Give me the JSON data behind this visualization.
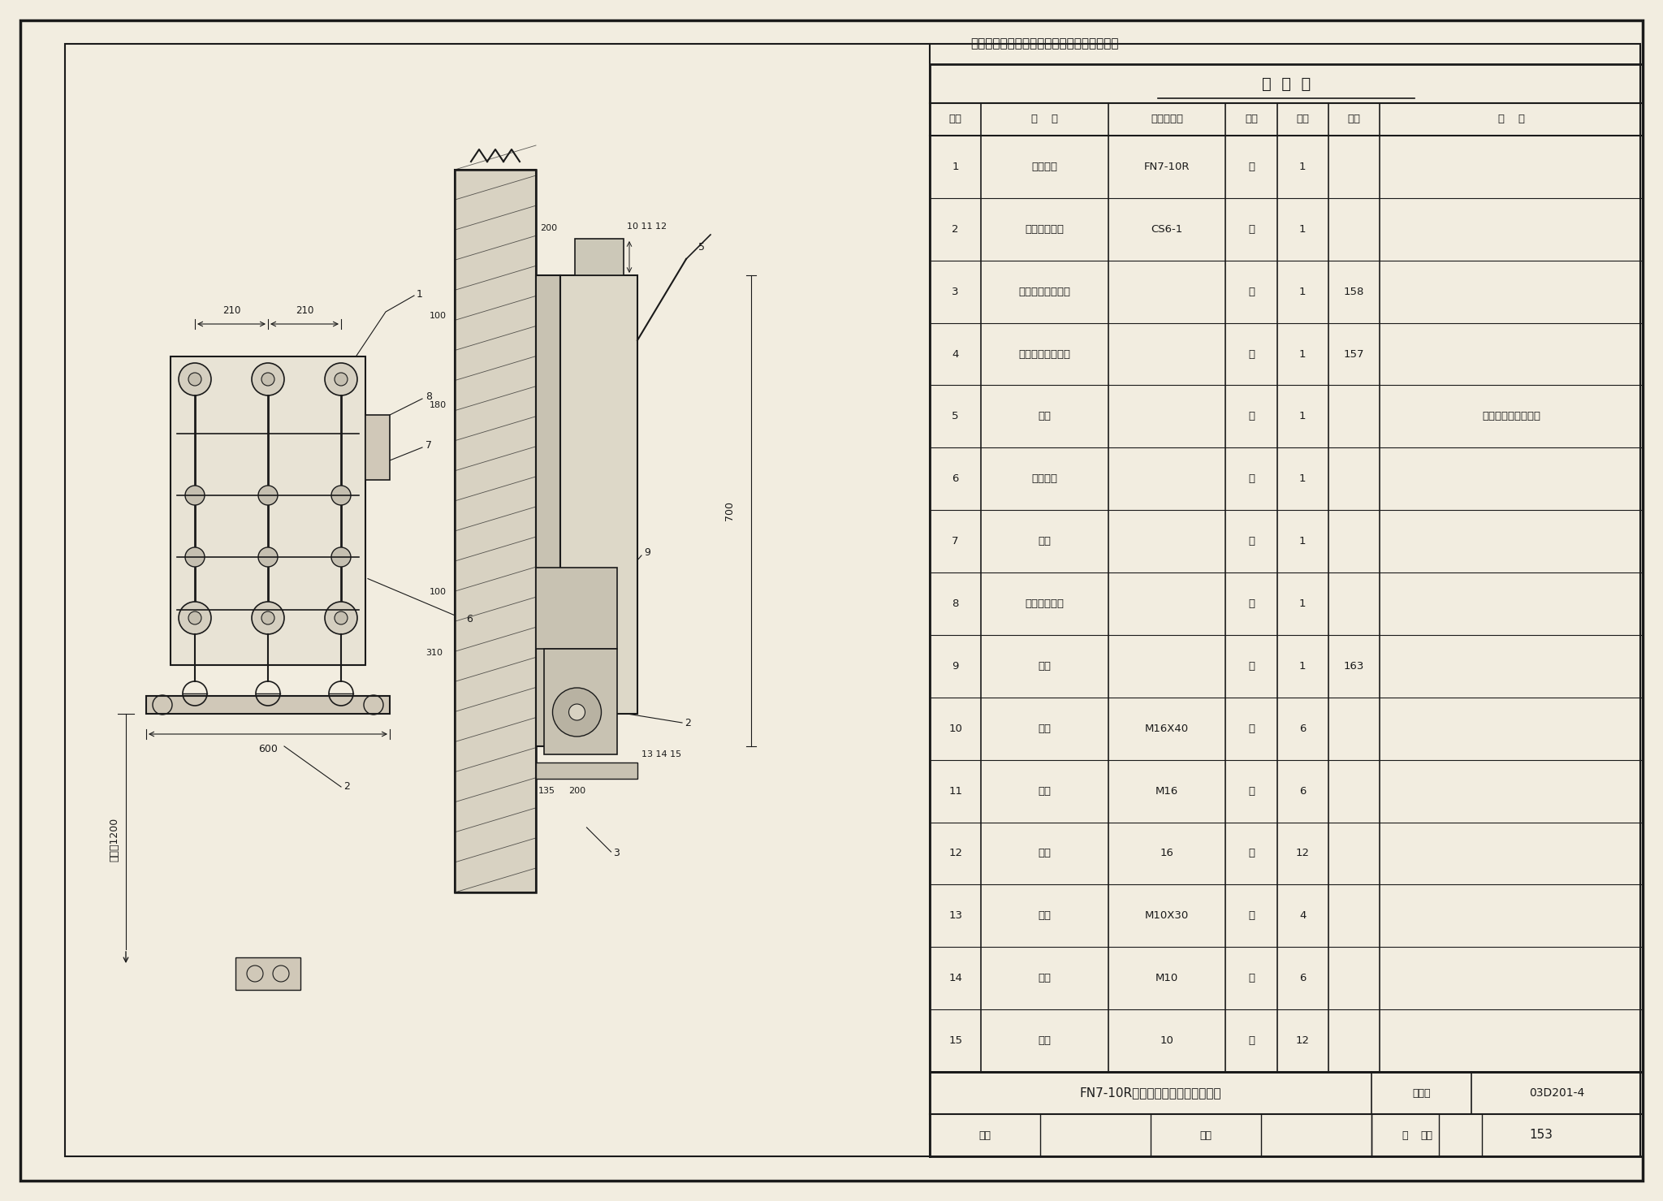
{
  "bg_color": "#ede8de",
  "paper_color": "#f2ede0",
  "border_color": "#1a1a1a",
  "line_color": "#1a1a1a",
  "note": "说明：操动机构也可安装在负荷开关的右侧。",
  "table_title": "明  细  表",
  "table_headers": [
    "序号",
    "名    称",
    "型号及规格",
    "单位",
    "数量",
    "页次",
    "备    注"
  ],
  "table_rows": [
    [
      "1",
      "负荷开关",
      "FN7-10R",
      "台",
      "1",
      "",
      ""
    ],
    [
      "2",
      "手力操动机构",
      "CS6-1",
      "台",
      "1",
      "",
      ""
    ],
    [
      "3",
      "操动机构安装支架",
      "",
      "个",
      "1",
      "158",
      ""
    ],
    [
      "4",
      "负荷开关安装支架",
      "",
      "个",
      "1",
      "157",
      ""
    ],
    [
      "5",
      "拉杆",
      "",
      "根",
      "1",
      "",
      "长度由工程设计决定"
    ],
    [
      "6",
      "焊接钓管",
      "",
      "根",
      "1",
      "",
      ""
    ],
    [
      "7",
      "转轴",
      "",
      "根",
      "1",
      "",
      ""
    ],
    [
      "8",
      "弹簧储能机构",
      "",
      "个",
      "1",
      "",
      ""
    ],
    [
      "9",
      "螺杆",
      "",
      "个",
      "1",
      "163",
      ""
    ],
    [
      "10",
      "螺栋",
      "M16X40",
      "个",
      "6",
      "",
      ""
    ],
    [
      "11",
      "螺母",
      "M16",
      "个",
      "6",
      "",
      ""
    ],
    [
      "12",
      "垃圈",
      "16",
      "个",
      "12",
      "",
      ""
    ],
    [
      "13",
      "螺栋",
      "M10X30",
      "个",
      "4",
      "",
      ""
    ],
    [
      "14",
      "螺母",
      "M10",
      "个",
      "6",
      "",
      ""
    ],
    [
      "15",
      "垃圈",
      "10",
      "个",
      "12",
      "",
      ""
    ]
  ],
  "title_row": "FN7-10R负荷开关在墙上支架上安装",
  "atlas_label": "图集号",
  "atlas_no": "03D201-4",
  "review_label": "审核",
  "proofread_label": "校对",
  "design_label": "设计",
  "page_label": "页",
  "page_no": "153"
}
